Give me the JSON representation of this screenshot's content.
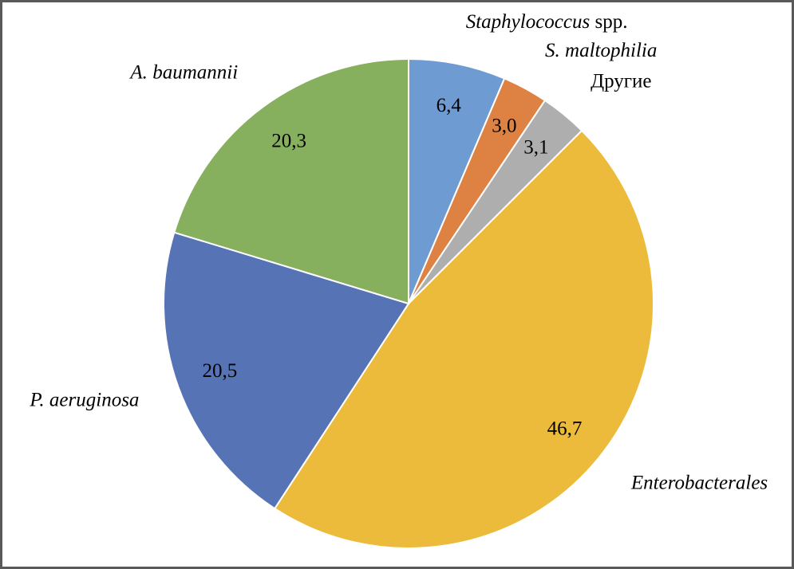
{
  "chart_data": {
    "type": "pie",
    "categories": [
      "Staphylococcus spp.",
      "S. maltophilia",
      "Другие",
      "Enterobacterales",
      "P. aeruginosa",
      "A. baumannii"
    ],
    "values": [
      6.4,
      3.0,
      3.1,
      46.7,
      20.5,
      20.3
    ],
    "value_labels": [
      "6,4",
      "3,0",
      "3,1",
      "46,7",
      "20,5",
      "20,3"
    ],
    "colors": [
      "#6f9bd3",
      "#de8244",
      "#aeaeae",
      "#ecbb3b",
      "#5573b5",
      "#86b05d"
    ]
  }
}
